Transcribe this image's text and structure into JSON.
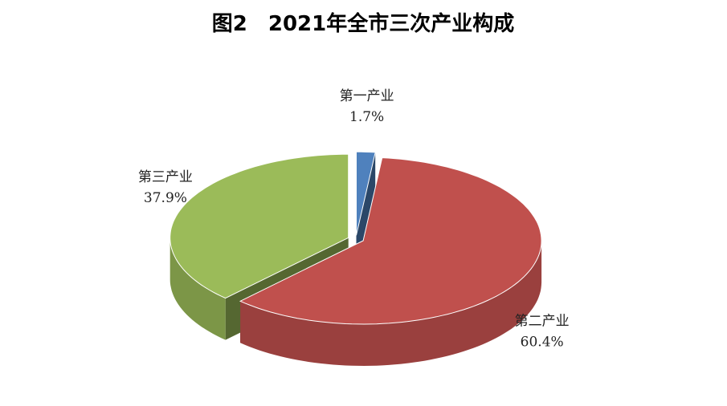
{
  "chart_data": {
    "type": "pie3d",
    "title": "图2　2021年全市三次产业构成",
    "categories": [
      "第一产业",
      "第二产业",
      "第三产业"
    ],
    "values": [
      1.7,
      60.4,
      37.9
    ],
    "value_labels": [
      "1.7%",
      "60.4%",
      "37.9%"
    ],
    "colors": [
      "#4f81bd",
      "#c0504d",
      "#9bbb59"
    ]
  }
}
